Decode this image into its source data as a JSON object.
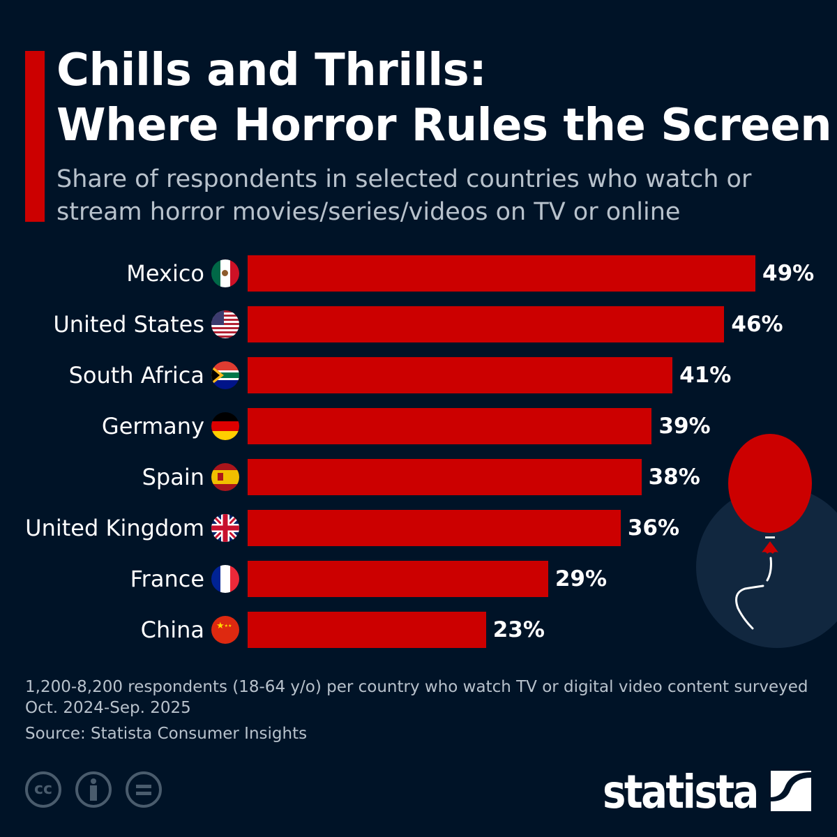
{
  "header": {
    "title_line1": "Chills and Thrills:",
    "title_line2": "Where Horror Rules the Screen",
    "subtitle": "Share of respondents in selected countries who watch or stream horror movies/series/videos on TV or online"
  },
  "chart_data": {
    "type": "bar",
    "orientation": "horizontal",
    "categories": [
      "Mexico",
      "United States",
      "South Africa",
      "Germany",
      "Spain",
      "United Kingdom",
      "France",
      "China"
    ],
    "values": [
      49,
      46,
      41,
      39,
      38,
      36,
      29,
      23
    ],
    "value_labels": [
      "49%",
      "46%",
      "41%",
      "39%",
      "38%",
      "36%",
      "29%",
      "23%"
    ],
    "unit": "%",
    "xlim": [
      0,
      49
    ],
    "grid": false,
    "bar_color": "#cc0000"
  },
  "footer": {
    "note": "1,200-8,200 respondents (18-64 y/o) per country who watch TV or digital video content surveyed Oct. 2024-Sep. 2025",
    "source": "Source: Statista Consumer Insights",
    "license_icons": [
      "cc-icon",
      "attribution-icon",
      "no-derivatives-icon"
    ],
    "cc_text": "cc",
    "logo": "statista"
  },
  "colors": {
    "background": "#001327",
    "accent": "#cc0000",
    "circle": "#11273f"
  }
}
